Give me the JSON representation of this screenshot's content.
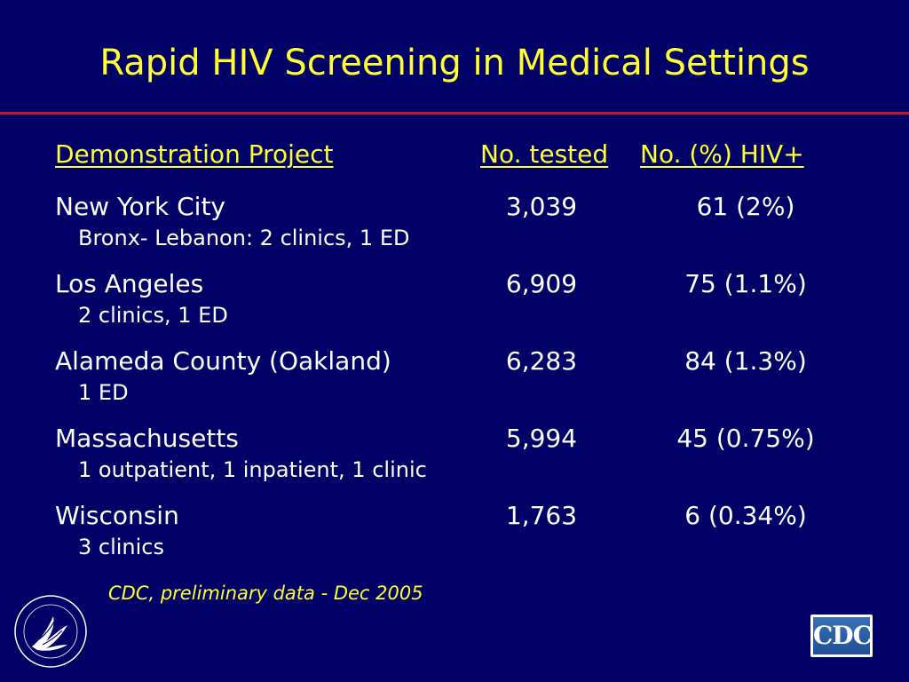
{
  "slide": {
    "title": "Rapid HIV Screening in Medical Settings",
    "accent_color": "#ffff33",
    "background_color": "#000066",
    "rule_color": "#cc1122"
  },
  "table": {
    "headers": {
      "project": "Demonstration Project",
      "tested": "No. tested",
      "hiv": "No. (%) HIV+"
    },
    "rows": [
      {
        "name": "New York City",
        "detail": "Bronx- Lebanon: 2 clinics, 1 ED",
        "tested": "3,039",
        "hiv": "61 (2%)"
      },
      {
        "name": "Los Angeles",
        "detail": "2 clinics, 1 ED",
        "tested": "6,909",
        "hiv": "75 (1.1%)"
      },
      {
        "name": "Alameda County (Oakland)",
        "detail": "1 ED",
        "tested": "6,283",
        "hiv": "84 (1.3%)"
      },
      {
        "name": "Massachusetts",
        "detail": "1 outpatient, 1 inpatient, 1 clinic",
        "tested": "5,994",
        "hiv": "45 (0.75%)"
      },
      {
        "name": "Wisconsin",
        "detail": "3 clinics",
        "tested": "1,763",
        "hiv": "6 (0.34%)"
      }
    ]
  },
  "source": "CDC, preliminary data - Dec 2005",
  "logos": {
    "hhs_seal_icon": "hhs-eagle-seal-icon",
    "cdc_logo_text": "CDC"
  }
}
